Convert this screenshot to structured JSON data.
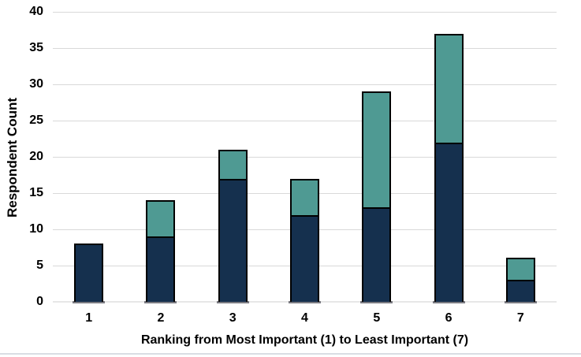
{
  "figure": {
    "background": "#FFFFFF",
    "bottom_border_color": "#D9DDE3"
  },
  "chart_data": {
    "type": "bar",
    "stacked": true,
    "xlabel": "Ranking from Most Important (1) to Least Important (7)",
    "ylabel": "Respondent Count",
    "categories": [
      "1",
      "2",
      "3",
      "4",
      "5",
      "6",
      "7"
    ],
    "series": [
      {
        "name": "bottom-navy-segment",
        "color": "#15304E",
        "values": [
          8,
          9,
          17,
          12,
          13,
          22,
          3
        ]
      },
      {
        "name": "top-teal-segment",
        "color": "#4F9A93",
        "values": [
          0,
          5,
          4,
          5,
          16,
          15,
          3
        ]
      }
    ],
    "stack_totals": [
      8,
      14,
      21,
      17,
      29,
      37,
      6
    ],
    "ylim": [
      0,
      40
    ],
    "yticks": [
      0,
      5,
      10,
      15,
      20,
      25,
      30,
      35,
      40
    ],
    "grid": true,
    "legend": false,
    "bar_border_color": "#000000",
    "gridline_color": "#D9D9D9",
    "baseline_color": "#E7E7E7",
    "bar_shadow_color": "#7B7B82",
    "text_color": "#000000"
  }
}
